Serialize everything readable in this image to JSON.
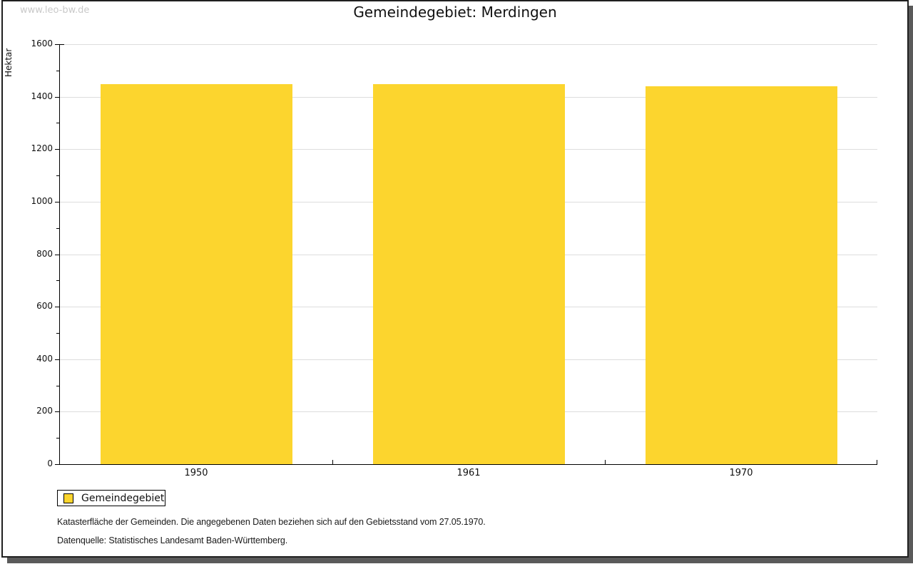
{
  "watermark": "www.leo-bw.de",
  "title": "Gemeindegebiet: Merdingen",
  "chart_data": {
    "type": "bar",
    "title": "Gemeindegebiet: Merdingen",
    "xlabel": "",
    "ylabel": "Hektar",
    "categories": [
      "1950",
      "1961",
      "1970"
    ],
    "series": [
      {
        "name": "Gemeindegebiet",
        "color": "#FCD52E",
        "values": [
          1447,
          1447,
          1441
        ]
      }
    ],
    "ylim": [
      0,
      1600
    ],
    "ytick_step": 200,
    "ytick_minor_step": 100,
    "grid": true,
    "legend_position": "bottom-left"
  },
  "legend": {
    "label": "Gemeindegebiet",
    "swatch_color": "#FCD52E"
  },
  "footnotes": [
    "Katasterfläche der Gemeinden. Die angegebenen Daten beziehen sich auf den Gebietsstand vom 27.05.1970.",
    "Datenquelle: Statistisches Landesamt Baden-Württemberg."
  ],
  "colors": {
    "bar_fill": "#FCD52E",
    "gridline": "#DDDDDD",
    "axis": "#000000",
    "watermark_text": "#C9C9C9",
    "frame_border": "#1F1F1F",
    "frame_shadow": "#5A5A5A"
  }
}
